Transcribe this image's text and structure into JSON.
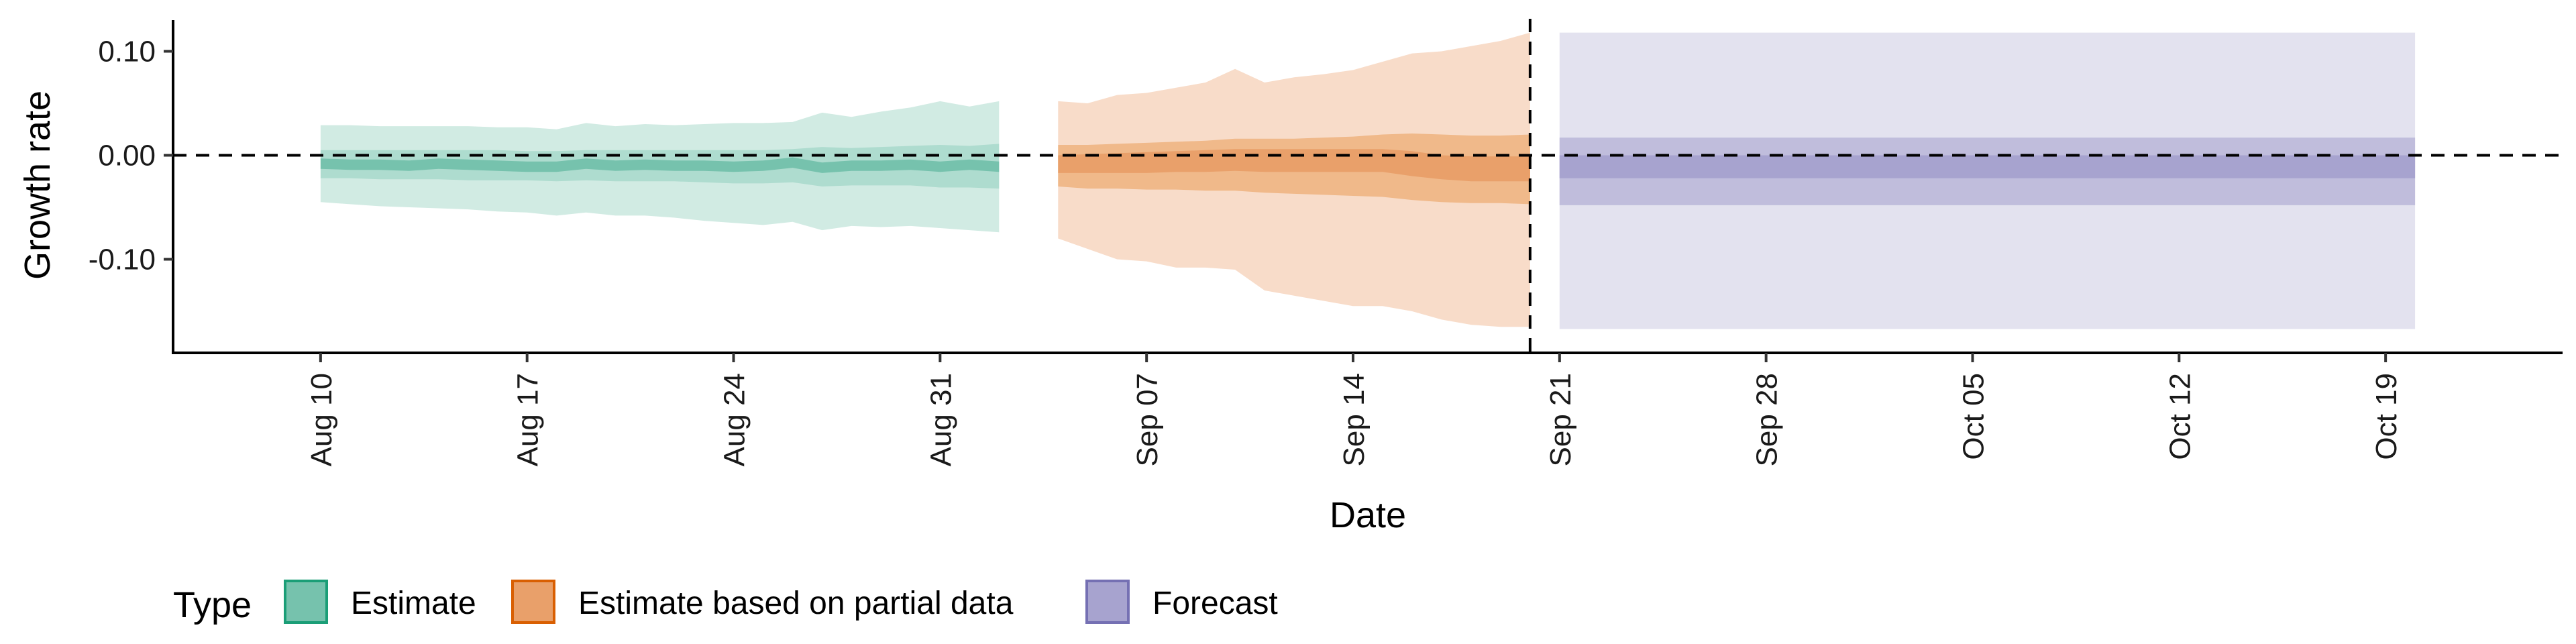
{
  "chart_data": {
    "type": "area",
    "xlabel": "Date",
    "ylabel": "Growth rate",
    "ylim": [
      -0.19,
      0.13
    ],
    "xlim": [
      "2020-08-05",
      "2020-10-25"
    ],
    "y_ticks": [
      0.1,
      0.0,
      -0.1
    ],
    "y_tick_labels": [
      "0.10",
      "0.00",
      "-0.10"
    ],
    "x_ticks": [
      "2020-08-10",
      "2020-08-17",
      "2020-08-24",
      "2020-08-31",
      "2020-09-07",
      "2020-09-14",
      "2020-09-21",
      "2020-09-28",
      "2020-10-05",
      "2020-10-12",
      "2020-10-19"
    ],
    "x_tick_labels": [
      "Aug 10",
      "Aug 17",
      "Aug 24",
      "Aug 31",
      "Sep 07",
      "Sep 14",
      "Sep 21",
      "Sep 28",
      "Oct 05",
      "Oct 12",
      "Oct 19"
    ],
    "hline_y": 0,
    "vline_x": "2020-09-20",
    "grid": false,
    "legend_position": "bottom-left",
    "legend_title": "Type",
    "series": [
      {
        "name": "Estimate",
        "color": "#1b9e77",
        "fill_outer": "#d1ebe3",
        "fill_mid": "#aedccf",
        "fill_inner": "#76c2ad",
        "x": [
          "2020-08-10",
          "2020-08-11",
          "2020-08-12",
          "2020-08-13",
          "2020-08-14",
          "2020-08-15",
          "2020-08-16",
          "2020-08-17",
          "2020-08-18",
          "2020-08-19",
          "2020-08-20",
          "2020-08-21",
          "2020-08-22",
          "2020-08-23",
          "2020-08-24",
          "2020-08-25",
          "2020-08-26",
          "2020-08-27",
          "2020-08-28",
          "2020-08-29",
          "2020-08-30",
          "2020-08-31",
          "2020-09-01",
          "2020-09-02"
        ],
        "outer_lower": [
          -0.045,
          -0.047,
          -0.049,
          -0.05,
          -0.051,
          -0.052,
          -0.054,
          -0.055,
          -0.058,
          -0.055,
          -0.058,
          -0.058,
          -0.06,
          -0.063,
          -0.065,
          -0.067,
          -0.064,
          -0.072,
          -0.068,
          -0.069,
          -0.068,
          -0.07,
          -0.072,
          -0.074
        ],
        "outer_upper": [
          0.029,
          0.029,
          0.028,
          0.028,
          0.028,
          0.028,
          0.027,
          0.027,
          0.025,
          0.031,
          0.028,
          0.03,
          0.029,
          0.03,
          0.031,
          0.031,
          0.032,
          0.041,
          0.037,
          0.042,
          0.046,
          0.052,
          0.047,
          0.052
        ],
        "mid_lower": [
          -0.022,
          -0.022,
          -0.023,
          -0.023,
          -0.023,
          -0.024,
          -0.024,
          -0.024,
          -0.025,
          -0.024,
          -0.025,
          -0.025,
          -0.025,
          -0.026,
          -0.027,
          -0.027,
          -0.026,
          -0.03,
          -0.029,
          -0.029,
          -0.029,
          -0.031,
          -0.031,
          -0.032
        ],
        "mid_upper": [
          0.005,
          0.005,
          0.005,
          0.005,
          0.005,
          0.005,
          0.005,
          0.004,
          0.004,
          0.005,
          0.005,
          0.005,
          0.005,
          0.005,
          0.005,
          0.005,
          0.006,
          0.008,
          0.007,
          0.008,
          0.009,
          0.01,
          0.009,
          0.011
        ],
        "inner_lower": [
          -0.013,
          -0.014,
          -0.014,
          -0.015,
          -0.013,
          -0.014,
          -0.015,
          -0.016,
          -0.016,
          -0.013,
          -0.015,
          -0.014,
          -0.015,
          -0.015,
          -0.016,
          -0.015,
          -0.012,
          -0.017,
          -0.015,
          -0.015,
          -0.014,
          -0.016,
          -0.014,
          -0.016
        ],
        "inner_upper": [
          -0.003,
          -0.004,
          -0.004,
          -0.005,
          -0.003,
          -0.004,
          -0.005,
          -0.006,
          -0.006,
          -0.003,
          -0.005,
          -0.004,
          -0.005,
          -0.005,
          -0.006,
          -0.005,
          -0.002,
          -0.007,
          -0.005,
          -0.005,
          -0.004,
          -0.006,
          -0.004,
          -0.006
        ]
      },
      {
        "name": "Estimate based on partial data",
        "color": "#d95f02",
        "fill_outer": "#f8dcc9",
        "fill_mid": "#f0b98a",
        "fill_inner": "#e9a06a",
        "x": [
          "2020-09-04",
          "2020-09-05",
          "2020-09-06",
          "2020-09-07",
          "2020-09-08",
          "2020-09-09",
          "2020-09-10",
          "2020-09-11",
          "2020-09-12",
          "2020-09-13",
          "2020-09-14",
          "2020-09-15",
          "2020-09-16",
          "2020-09-17",
          "2020-09-18",
          "2020-09-19",
          "2020-09-20"
        ],
        "outer_lower": [
          -0.08,
          -0.09,
          -0.1,
          -0.102,
          -0.108,
          -0.108,
          -0.11,
          -0.13,
          -0.135,
          -0.14,
          -0.145,
          -0.145,
          -0.15,
          -0.158,
          -0.163,
          -0.165,
          -0.165
        ],
        "outer_upper": [
          0.052,
          0.05,
          0.058,
          0.06,
          0.065,
          0.07,
          0.083,
          0.07,
          0.075,
          0.078,
          0.082,
          0.09,
          0.098,
          0.1,
          0.105,
          0.11,
          0.118
        ],
        "mid_lower": [
          -0.03,
          -0.032,
          -0.032,
          -0.033,
          -0.033,
          -0.034,
          -0.034,
          -0.036,
          -0.037,
          -0.038,
          -0.039,
          -0.04,
          -0.043,
          -0.045,
          -0.046,
          -0.046,
          -0.047
        ],
        "mid_upper": [
          0.01,
          0.01,
          0.011,
          0.012,
          0.013,
          0.014,
          0.016,
          0.016,
          0.016,
          0.017,
          0.018,
          0.02,
          0.021,
          0.02,
          0.019,
          0.019,
          0.02
        ],
        "inner_lower": [
          -0.017,
          -0.017,
          -0.017,
          -0.017,
          -0.016,
          -0.016,
          -0.015,
          -0.016,
          -0.016,
          -0.016,
          -0.016,
          -0.016,
          -0.02,
          -0.023,
          -0.025,
          -0.025,
          -0.025
        ],
        "inner_upper": [
          0.0,
          0.001,
          0.002,
          0.003,
          0.004,
          0.005,
          0.006,
          0.006,
          0.006,
          0.006,
          0.006,
          0.006,
          0.004,
          0.0,
          -0.001,
          -0.001,
          -0.001
        ]
      },
      {
        "name": "Forecast",
        "color": "#7570b3",
        "fill_outer": "#e3e2ef",
        "fill_mid": "#c0bddc",
        "fill_inner": "#a7a3cf",
        "x": [
          "2020-09-21",
          "2020-10-20"
        ],
        "outer_lower": [
          -0.167,
          -0.167
        ],
        "outer_upper": [
          0.118,
          0.118
        ],
        "mid_lower": [
          -0.048,
          -0.048
        ],
        "mid_upper": [
          0.017,
          0.017
        ],
        "inner_lower": [
          -0.022,
          -0.022
        ],
        "inner_upper": [
          0.0,
          0.0
        ]
      }
    ]
  }
}
